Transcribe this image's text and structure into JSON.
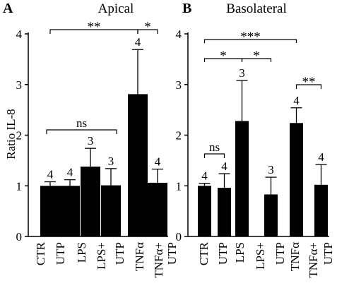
{
  "chart_data": [
    {
      "panel_letter": "A",
      "type": "bar",
      "title": "Apical",
      "ylabel": "Ratio IL-8",
      "ylim": [
        0,
        4
      ],
      "yticks": [
        "0",
        "1",
        "2",
        "3",
        "4"
      ],
      "bar_color": "#000000",
      "categories": [
        "CTR",
        "UTP",
        "LPS",
        "LPS+ UTP",
        "TNFα",
        "TNFα+ UTP"
      ],
      "tick_labels": [
        [
          "CTR"
        ],
        [
          "UTP"
        ],
        [
          "LPS"
        ],
        [
          "LPS+"
        ],
        [
          "UTP"
        ],
        [
          "TNFα"
        ],
        [
          "TNFα+",
          "UTP"
        ]
      ],
      "values": [
        1.0,
        1.0,
        1.38,
        1.01,
        2.81,
        1.06
      ],
      "errors": [
        0.08,
        0.12,
        0.36,
        0.33,
        0.88,
        0.27
      ],
      "n_labels": [
        "4",
        "4",
        "3",
        "3",
        "4",
        "4"
      ],
      "significance": [
        {
          "from": 0,
          "to": 4,
          "label": "**"
        },
        {
          "from": 4,
          "to": 5,
          "label": "*"
        },
        {
          "from": 0,
          "to": 3,
          "label": "ns"
        }
      ]
    },
    {
      "panel_letter": "B",
      "type": "bar",
      "title": "Basolateral",
      "ylabel": "",
      "ylim": [
        0,
        4
      ],
      "yticks": [
        "0",
        "1",
        "2",
        "3",
        "4"
      ],
      "bar_color": "#000000",
      "categories": [
        "CTR",
        "UTP",
        "LPS",
        "LPS+ UTP",
        "TNFα",
        "TNFα+ UTP"
      ],
      "tick_labels": [
        [
          "CTR"
        ],
        [
          "UTP"
        ],
        [
          "LPS"
        ],
        [
          "LPS+"
        ],
        [
          "UTP"
        ],
        [
          "TNFα"
        ],
        [
          "TNFα+"
        ],
        [
          "UTP"
        ]
      ],
      "values": [
        1.0,
        0.96,
        2.28,
        0.83,
        2.24,
        1.02
      ],
      "errors": [
        0.05,
        0.28,
        0.8,
        0.34,
        0.3,
        0.4
      ],
      "n_labels": [
        "4",
        "4",
        "3",
        "3",
        "4",
        "4"
      ],
      "significance": [
        {
          "from": 0,
          "to": 4,
          "label": "***"
        },
        {
          "from": 0,
          "to": 2,
          "label": "*"
        },
        {
          "from": 2,
          "to": 3,
          "label": "*"
        },
        {
          "from": 4,
          "to": 5,
          "label": "**"
        },
        {
          "from": 0,
          "to": 1,
          "label": "ns"
        }
      ]
    }
  ]
}
